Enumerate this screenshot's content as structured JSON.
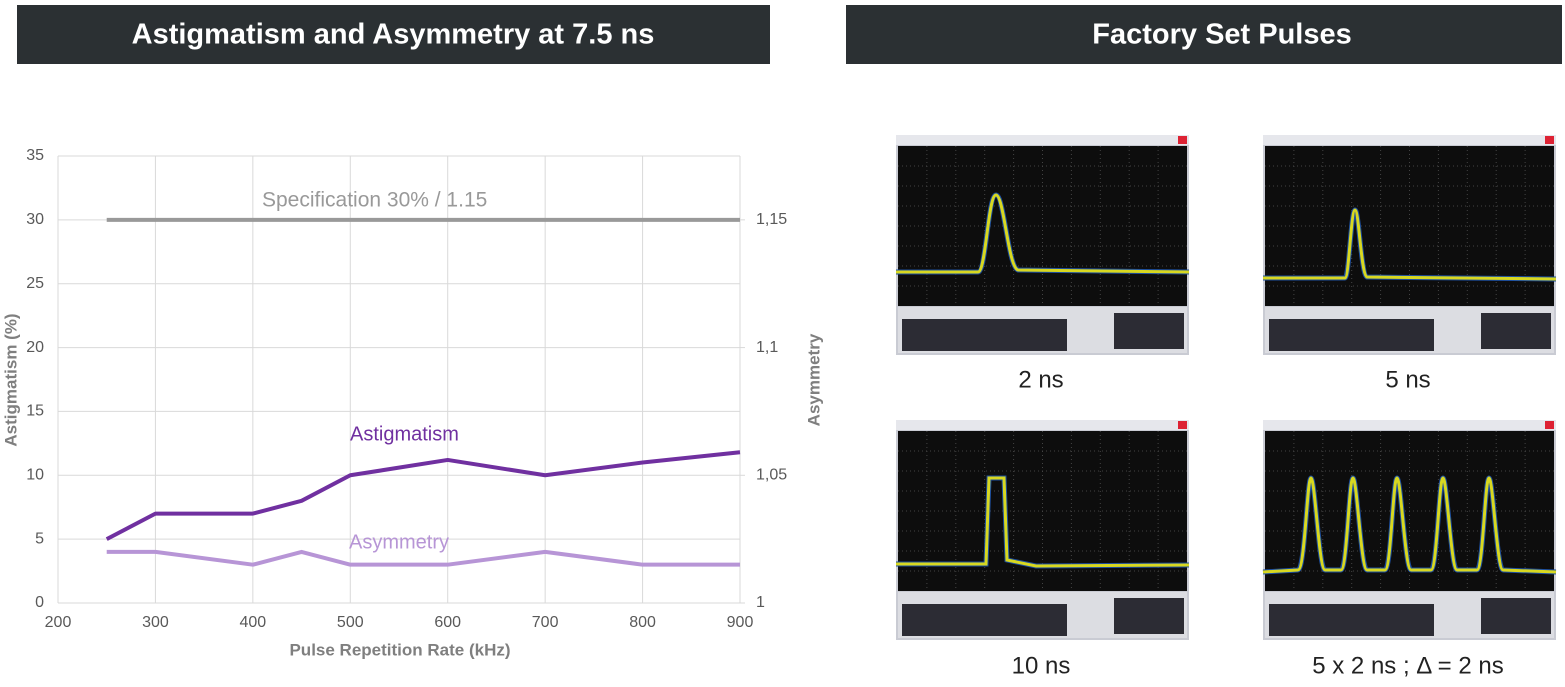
{
  "left_header": {
    "title": "Astigmatism and Asymmetry at 7.5 ns"
  },
  "right_header": {
    "title": "Factory Set Pulses"
  },
  "chart_data": {
    "type": "line",
    "xlabel": "Pulse Repetition Rate (kHz)",
    "ylabel": "Astigmatism (%)",
    "y2label": "Asymmetry",
    "x": [
      250,
      300,
      400,
      450,
      500,
      600,
      700,
      800,
      900
    ],
    "series": [
      {
        "name": "Specification 30% / 1.15",
        "color": "#999999",
        "values": [
          30,
          30,
          30,
          30,
          30,
          30,
          30,
          30,
          30
        ]
      },
      {
        "name": "Astigmatism",
        "color": "#7030a0",
        "values": [
          5,
          7,
          7,
          8,
          10,
          11.2,
          10,
          11,
          11.8
        ]
      },
      {
        "name": "Asymmetry",
        "color": "#b795d6",
        "axis": "y2",
        "values": [
          1.02,
          1.02,
          1.015,
          1.02,
          1.015,
          1.015,
          1.02,
          1.015,
          1.015
        ]
      }
    ],
    "xlim": [
      200,
      900
    ],
    "xticks": [
      200,
      300,
      400,
      500,
      600,
      700,
      800,
      900
    ],
    "ylim": [
      0,
      35
    ],
    "yticks": [
      0,
      5,
      10,
      15,
      20,
      25,
      30,
      35
    ],
    "y2lim": [
      1,
      1.175
    ],
    "y2ticks": [
      1,
      {
        "value": 1.05,
        "label": "1,05"
      },
      {
        "value": 1.1,
        "label": "1,1"
      },
      {
        "value": 1.15,
        "label": "1,15"
      }
    ],
    "grid": true
  },
  "pulses": [
    {
      "caption": "2 ns"
    },
    {
      "caption": "5 ns"
    },
    {
      "caption": "10 ns"
    },
    {
      "caption": "5 x 2 ns ; Δ = 2 ns"
    }
  ]
}
